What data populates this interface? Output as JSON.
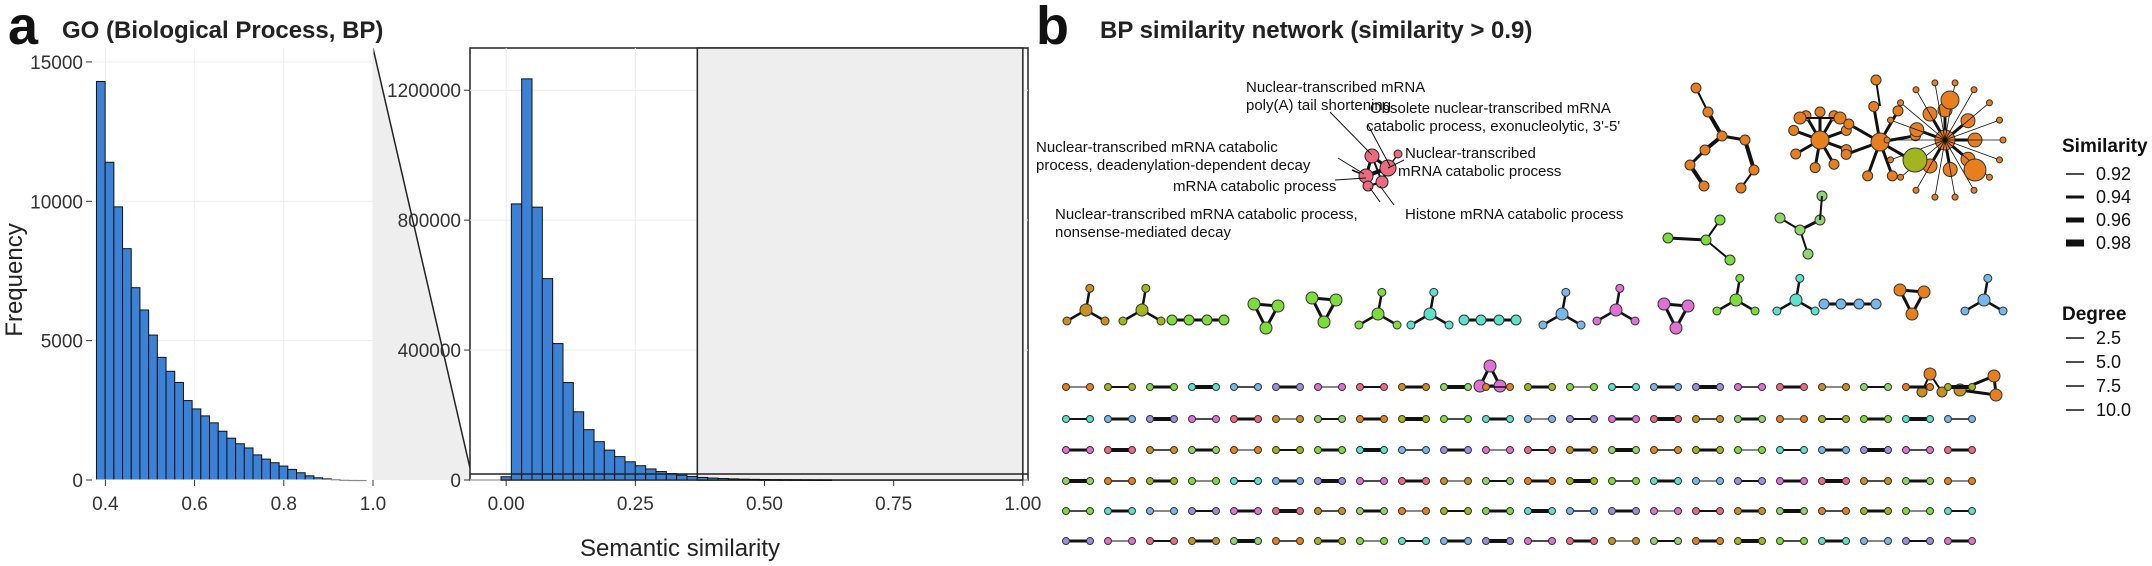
{
  "panel_a": {
    "letter": "a",
    "title": "GO (Biological Process, BP)",
    "xlabel_shared": "Semantic similarity"
  },
  "panel_b": {
    "letter": "b",
    "title": "BP similarity network (similarity > 0.9)",
    "annotations": [
      "Nuclear-transcribed mRNA",
      "poly(A) tail shortening",
      "Obsolete nuclear-transcribed mRNA",
      "catabolic process, exonucleolytic, 3'-5'",
      "Nuclear-transcribed mRNA catabolic",
      "process, deadenylation-dependent decay",
      "Nuclear-transcribed",
      "mRNA catabolic process",
      "mRNA catabolic process",
      "Nuclear-transcribed mRNA catabolic process,",
      "nonsense-mediated decay",
      "Histone mRNA catabolic process"
    ],
    "legend_similarity": {
      "title": "Similarity",
      "items": [
        "0.92",
        "0.94",
        "0.96",
        "0.98"
      ]
    },
    "legend_degree": {
      "title": "Degree",
      "items": [
        "2.5",
        "5.0",
        "7.5",
        "10.0"
      ]
    },
    "node_colors": [
      "#e87f1e",
      "#a2b51e",
      "#7cdc3a",
      "#5de0cc",
      "#76b8ea",
      "#9b8ee0",
      "#e070d6",
      "#ec6a7d",
      "#c98f22",
      "#8fd66a"
    ]
  },
  "chart_data": [
    {
      "type": "bar",
      "title": "GO (Biological Process, BP)",
      "ylabel": "Frequency",
      "xlabel": "",
      "xlim": [
        0.37,
        1.0
      ],
      "ylim": [
        0,
        15500
      ],
      "xticks": [
        "0.4",
        "0.6",
        "0.8",
        "1.0"
      ],
      "xtick_values": [
        0.4,
        0.6,
        0.8,
        1.0
      ],
      "yticks": [
        "0",
        "5000",
        "10000",
        "15000"
      ],
      "ytick_values": [
        0,
        5000,
        10000,
        15000
      ],
      "bin_width": 0.0195,
      "bin_start": 0.38,
      "values": [
        14300,
        11400,
        9800,
        8300,
        6900,
        6100,
        5200,
        4400,
        3900,
        3500,
        2850,
        2550,
        2300,
        2050,
        1750,
        1500,
        1300,
        1150,
        900,
        750,
        620,
        500,
        380,
        260,
        150,
        80,
        40,
        15,
        5,
        2,
        1
      ],
      "grid": true
    },
    {
      "type": "bar",
      "title": "",
      "ylabel": "",
      "xlabel": "Semantic similarity",
      "xlim": [
        -0.07,
        1.01
      ],
      "ylim": [
        0,
        1330000
      ],
      "xticks": [
        "0.00",
        "0.25",
        "0.50",
        "0.75",
        "1.00"
      ],
      "xtick_values": [
        0,
        0.25,
        0.5,
        0.75,
        1.0
      ],
      "yticks": [
        "0",
        "400000",
        "800000",
        "1200000"
      ],
      "ytick_values": [
        0,
        400000,
        800000,
        1200000
      ],
      "bin_width": 0.02,
      "bin_start": -0.01,
      "values": [
        10000,
        850000,
        1235000,
        840000,
        620000,
        420000,
        300000,
        210000,
        155000,
        118000,
        92000,
        72000,
        56000,
        44000,
        34000,
        26000,
        20000,
        15000,
        11000,
        8000,
        6000,
        4500,
        3500,
        2500,
        2000,
        1500,
        1200,
        1000,
        800,
        600,
        500,
        400
      ],
      "highlight_range": [
        0.37,
        1.0
      ],
      "grid": true
    }
  ]
}
